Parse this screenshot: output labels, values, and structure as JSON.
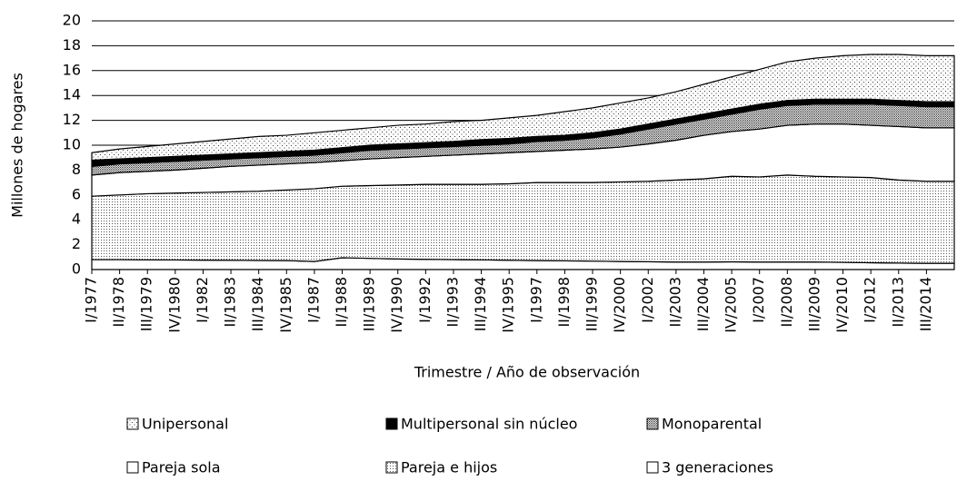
{
  "chart_data": {
    "type": "stacked_area",
    "x_label": "Trimestre / Año de observación",
    "y_label": "Millones de hogares",
    "categories": [
      "I/1977",
      "II/1978",
      "III/1979",
      "IV/1980",
      "I/1982",
      "II/1983",
      "III/1984",
      "IV/1985",
      "I/1987",
      "II/1988",
      "III/1989",
      "IV/1990",
      "I/1992",
      "II/1993",
      "III/1994",
      "IV/1995",
      "I/1997",
      "II/1998",
      "III/1999",
      "IV/2000",
      "I/2002",
      "II/2003",
      "III/2004",
      "IV/2005",
      "I/2007",
      "II/2008",
      "III/2009",
      "IV/2010",
      "I/2012",
      "II/2013",
      "III/2014",
      null
    ],
    "ylim": [
      0,
      20
    ],
    "yticks": [
      0,
      2,
      4,
      6,
      8,
      10,
      12,
      14,
      16,
      18,
      20
    ],
    "grid": true,
    "series": [
      {
        "name": "3 generaciones",
        "color": "#ffffff",
        "pattern": "solid",
        "values": [
          0.8,
          0.8,
          0.78,
          0.77,
          0.76,
          0.75,
          0.73,
          0.72,
          0.65,
          0.95,
          0.9,
          0.85,
          0.82,
          0.8,
          0.78,
          0.75,
          0.72,
          0.7,
          0.68,
          0.65,
          0.63,
          0.6,
          0.6,
          0.62,
          0.6,
          0.6,
          0.6,
          0.58,
          0.55,
          0.52,
          0.5,
          0.5
        ]
      },
      {
        "name": "Pareja e hijos",
        "color": "#000000",
        "pattern": "fine",
        "values": [
          5.1,
          5.2,
          5.32,
          5.38,
          5.44,
          5.5,
          5.57,
          5.68,
          5.85,
          5.75,
          5.85,
          5.95,
          6.03,
          6.05,
          6.07,
          6.15,
          6.28,
          6.3,
          6.32,
          6.4,
          6.47,
          6.6,
          6.7,
          6.88,
          6.85,
          7.0,
          6.9,
          6.87,
          6.85,
          6.68,
          6.6,
          6.6
        ]
      },
      {
        "name": "Pareja sola",
        "color": "#ffffff",
        "pattern": "solid",
        "values": [
          1.7,
          1.8,
          1.8,
          1.85,
          1.95,
          2.05,
          2.1,
          2.1,
          2.1,
          2.05,
          2.15,
          2.2,
          2.25,
          2.35,
          2.45,
          2.5,
          2.5,
          2.6,
          2.7,
          2.8,
          3.0,
          3.2,
          3.5,
          3.6,
          3.85,
          4.0,
          4.2,
          4.25,
          4.2,
          4.3,
          4.3,
          4.3
        ]
      },
      {
        "name": "Monoparental",
        "color": "#000000",
        "pattern": "dense",
        "values": [
          0.7,
          0.7,
          0.7,
          0.7,
          0.65,
          0.6,
          0.6,
          0.6,
          0.6,
          0.65,
          0.7,
          0.7,
          0.7,
          0.7,
          0.7,
          0.7,
          0.8,
          0.8,
          0.9,
          1.05,
          1.2,
          1.3,
          1.3,
          1.4,
          1.6,
          1.6,
          1.6,
          1.6,
          1.7,
          1.7,
          1.7,
          1.7
        ]
      },
      {
        "name": "Multipersonal sin núcleo",
        "color": "#000000",
        "pattern": "solid",
        "values": [
          0.5,
          0.4,
          0.4,
          0.4,
          0.4,
          0.4,
          0.4,
          0.4,
          0.4,
          0.4,
          0.4,
          0.4,
          0.4,
          0.4,
          0.45,
          0.45,
          0.4,
          0.4,
          0.4,
          0.4,
          0.4,
          0.4,
          0.4,
          0.4,
          0.4,
          0.4,
          0.4,
          0.4,
          0.4,
          0.4,
          0.4,
          0.4
        ]
      },
      {
        "name": "Unipersonal",
        "color": "#000000",
        "pattern": "sparse",
        "values": [
          0.6,
          0.8,
          0.9,
          1.0,
          1.1,
          1.2,
          1.3,
          1.3,
          1.4,
          1.4,
          1.4,
          1.5,
          1.5,
          1.6,
          1.55,
          1.65,
          1.7,
          1.9,
          2.0,
          2.1,
          2.1,
          2.2,
          2.4,
          2.6,
          2.8,
          3.1,
          3.3,
          3.5,
          3.6,
          3.7,
          3.7,
          3.7
        ]
      }
    ]
  }
}
